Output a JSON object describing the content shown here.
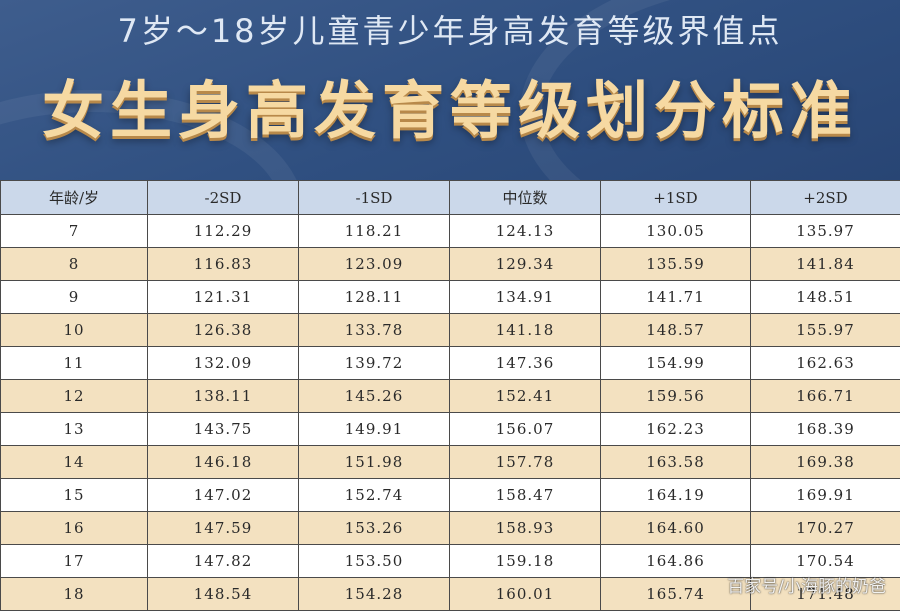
{
  "header": {
    "subtitle": "7岁～18岁儿童青少年身高发育等级界值点",
    "title": "女生身高发育等级划分标准"
  },
  "table": {
    "columns": [
      "年龄/岁",
      "-2SD",
      "-1SD",
      "中位数",
      "+1SD",
      "+2SD"
    ],
    "rows": [
      [
        "7",
        "112.29",
        "118.21",
        "124.13",
        "130.05",
        "135.97"
      ],
      [
        "8",
        "116.83",
        "123.09",
        "129.34",
        "135.59",
        "141.84"
      ],
      [
        "9",
        "121.31",
        "128.11",
        "134.91",
        "141.71",
        "148.51"
      ],
      [
        "10",
        "126.38",
        "133.78",
        "141.18",
        "148.57",
        "155.97"
      ],
      [
        "11",
        "132.09",
        "139.72",
        "147.36",
        "154.99",
        "162.63"
      ],
      [
        "12",
        "138.11",
        "145.26",
        "152.41",
        "159.56",
        "166.71"
      ],
      [
        "13",
        "143.75",
        "149.91",
        "156.07",
        "162.23",
        "168.39"
      ],
      [
        "14",
        "146.18",
        "151.98",
        "157.78",
        "163.58",
        "169.38"
      ],
      [
        "15",
        "147.02",
        "152.74",
        "158.47",
        "164.19",
        "169.91"
      ],
      [
        "16",
        "147.59",
        "153.26",
        "158.93",
        "164.60",
        "170.27"
      ],
      [
        "17",
        "147.82",
        "153.50",
        "159.18",
        "164.86",
        "170.54"
      ],
      [
        "18",
        "148.54",
        "154.28",
        "160.01",
        "165.74",
        "171.48"
      ]
    ]
  },
  "watermark": "百家号/小海豚的奶爸",
  "colors": {
    "banner": "#2f4f80",
    "title": "#f6d9a2",
    "header_row": "#cbd8ea",
    "alt_row": "#f3e1c0"
  }
}
